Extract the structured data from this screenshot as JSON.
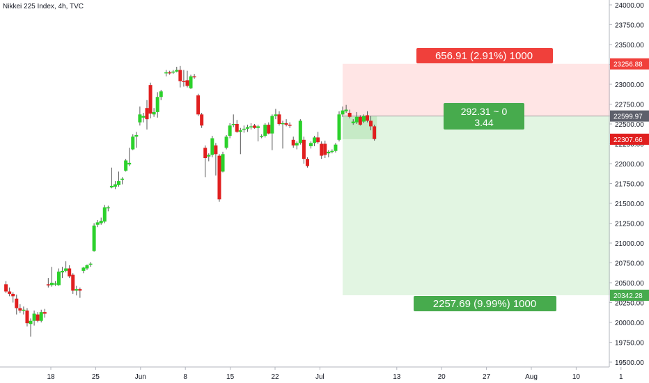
{
  "header": {
    "title": "Nikkei 225 Index, 4h, TVC"
  },
  "colors": {
    "up": "#2bd12b",
    "down": "#e01f1f",
    "wick": "#555555",
    "risk_zone": "#ffe5e5",
    "reward_zone": "#e2f5e2",
    "entry_zone": "#c6eac6",
    "risk_label": "#f0403b",
    "reward_label": "#47ab4d",
    "stop_tag": "#f0403b",
    "entry_tag": "#5d606b",
    "current_tag": "#e01f1f",
    "target_tag": "#47ab4d"
  },
  "chart_data": {
    "type": "candlestick",
    "ylim": [
      19400,
      24050
    ],
    "y_ticks": [
      "19500.00",
      "19750.00",
      "20000.00",
      "20250.00",
      "20500.00",
      "20750.00",
      "21000.00",
      "21250.00",
      "21500.00",
      "21750.00",
      "22000.00",
      "22250.00",
      "22500.00",
      "22750.00",
      "23000.00",
      "23250.00",
      "23500.00",
      "23750.00",
      "24000.00"
    ],
    "x_ticks": [
      {
        "label": "18",
        "t": 18
      },
      {
        "label": "25",
        "t": 25
      },
      {
        "label": "Jun",
        "t": 32
      },
      {
        "label": "8",
        "t": 39
      },
      {
        "label": "15",
        "t": 46
      },
      {
        "label": "22",
        "t": 53
      },
      {
        "label": "Jul",
        "t": 60
      },
      {
        "label": "13",
        "t": 72
      },
      {
        "label": "20",
        "t": 79
      },
      {
        "label": "27",
        "t": 86
      },
      {
        "label": "Aug",
        "t": 93
      },
      {
        "label": "10",
        "t": 100
      },
      {
        "label": "1",
        "t": 107
      }
    ],
    "candles": [
      {
        "t": 11.0,
        "o": 20480,
        "h": 20520,
        "l": 20370,
        "c": 20390
      },
      {
        "t": 11.55,
        "o": 20390,
        "h": 20440,
        "l": 20330,
        "c": 20360
      },
      {
        "t": 12.1,
        "o": 20360,
        "h": 20380,
        "l": 20250,
        "c": 20330
      },
      {
        "t": 12.65,
        "o": 20300,
        "h": 20350,
        "l": 20100,
        "c": 20180
      },
      {
        "t": 13.2,
        "o": 20180,
        "h": 20230,
        "l": 20120,
        "c": 20150
      },
      {
        "t": 13.75,
        "o": 20150,
        "h": 20200,
        "l": 20100,
        "c": 20160
      },
      {
        "t": 14.3,
        "o": 20150,
        "h": 20180,
        "l": 19950,
        "c": 19990
      },
      {
        "t": 14.85,
        "o": 19980,
        "h": 20050,
        "l": 19820,
        "c": 20020
      },
      {
        "t": 15.4,
        "o": 20020,
        "h": 20150,
        "l": 19960,
        "c": 20110
      },
      {
        "t": 15.95,
        "o": 20100,
        "h": 20130,
        "l": 20000,
        "c": 20020
      },
      {
        "t": 16.5,
        "o": 20020,
        "h": 20160,
        "l": 20000,
        "c": 20130
      },
      {
        "t": 17.05,
        "o": 20130,
        "h": 20170,
        "l": 20060,
        "c": 20110
      },
      {
        "t": 17.6,
        "o": 20480,
        "h": 20560,
        "l": 20440,
        "c": 20470
      },
      {
        "t": 18.15,
        "o": 20470,
        "h": 20700,
        "l": 20450,
        "c": 20500
      },
      {
        "t": 18.7,
        "o": 20480,
        "h": 20520,
        "l": 20460,
        "c": 20490
      },
      {
        "t": 19.25,
        "o": 20470,
        "h": 20680,
        "l": 20460,
        "c": 20640
      },
      {
        "t": 19.8,
        "o": 20630,
        "h": 20700,
        "l": 20560,
        "c": 20650
      },
      {
        "t": 20.35,
        "o": 20650,
        "h": 20770,
        "l": 20630,
        "c": 20680
      },
      {
        "t": 20.9,
        "o": 20680,
        "h": 20720,
        "l": 20560,
        "c": 20580
      },
      {
        "t": 21.45,
        "o": 20600,
        "h": 20620,
        "l": 20360,
        "c": 20400
      },
      {
        "t": 22.0,
        "o": 20400,
        "h": 20460,
        "l": 20340,
        "c": 20420
      },
      {
        "t": 22.55,
        "o": 20420,
        "h": 20440,
        "l": 20310,
        "c": 20400
      },
      {
        "t": 23.1,
        "o": 20650,
        "h": 20700,
        "l": 20620,
        "c": 20690
      },
      {
        "t": 23.65,
        "o": 20680,
        "h": 20730,
        "l": 20660,
        "c": 20720
      },
      {
        "t": 24.2,
        "o": 20730,
        "h": 20760,
        "l": 20700,
        "c": 20740
      },
      {
        "t": 24.75,
        "o": 20900,
        "h": 21250,
        "l": 20890,
        "c": 21220
      },
      {
        "t": 25.3,
        "o": 21230,
        "h": 21290,
        "l": 21200,
        "c": 21260
      },
      {
        "t": 25.85,
        "o": 21250,
        "h": 21320,
        "l": 21230,
        "c": 21280
      },
      {
        "t": 26.4,
        "o": 21270,
        "h": 21480,
        "l": 21250,
        "c": 21450
      },
      {
        "t": 26.95,
        "o": 21440,
        "h": 21470,
        "l": 21400,
        "c": 21450
      },
      {
        "t": 27.5,
        "o": 21700,
        "h": 21950,
        "l": 21690,
        "c": 21720
      },
      {
        "t": 28.05,
        "o": 21710,
        "h": 21780,
        "l": 21680,
        "c": 21740
      },
      {
        "t": 28.6,
        "o": 21730,
        "h": 21900,
        "l": 21710,
        "c": 21780
      },
      {
        "t": 29.15,
        "o": 21800,
        "h": 21830,
        "l": 21740,
        "c": 21810
      },
      {
        "t": 29.7,
        "o": 21910,
        "h": 22060,
        "l": 21900,
        "c": 22040
      },
      {
        "t": 30.25,
        "o": 21990,
        "h": 22200,
        "l": 21970,
        "c": 22010
      },
      {
        "t": 30.8,
        "o": 22180,
        "h": 22370,
        "l": 22170,
        "c": 22340
      },
      {
        "t": 31.35,
        "o": 22340,
        "h": 22400,
        "l": 22200,
        "c": 22360
      },
      {
        "t": 31.9,
        "o": 22520,
        "h": 22720,
        "l": 22480,
        "c": 22620
      },
      {
        "t": 32.45,
        "o": 22580,
        "h": 22640,
        "l": 22520,
        "c": 22600
      },
      {
        "t": 33.0,
        "o": 22700,
        "h": 22800,
        "l": 22430,
        "c": 22560
      },
      {
        "t": 33.55,
        "o": 22990,
        "h": 23020,
        "l": 22570,
        "c": 22630
      },
      {
        "t": 34.1,
        "o": 22620,
        "h": 22700,
        "l": 22590,
        "c": 22650
      },
      {
        "t": 34.65,
        "o": 22650,
        "h": 22900,
        "l": 22580,
        "c": 22840
      },
      {
        "t": 35.2,
        "o": 22840,
        "h": 22930,
        "l": 22800,
        "c": 22910
      },
      {
        "t": 36.0,
        "o": 23140,
        "h": 23180,
        "l": 23100,
        "c": 23150
      },
      {
        "t": 36.55,
        "o": 23150,
        "h": 23170,
        "l": 23120,
        "c": 23140
      },
      {
        "t": 37.1,
        "o": 23150,
        "h": 23180,
        "l": 23130,
        "c": 23160
      },
      {
        "t": 37.65,
        "o": 23160,
        "h": 23220,
        "l": 23150,
        "c": 23180
      },
      {
        "t": 38.2,
        "o": 23180,
        "h": 23230,
        "l": 22960,
        "c": 23040
      },
      {
        "t": 38.75,
        "o": 23040,
        "h": 23180,
        "l": 22970,
        "c": 23030
      },
      {
        "t": 39.3,
        "o": 23050,
        "h": 23170,
        "l": 22960,
        "c": 22980
      },
      {
        "t": 39.85,
        "o": 22950,
        "h": 23120,
        "l": 22940,
        "c": 23100
      },
      {
        "t": 40.4,
        "o": 23100,
        "h": 23130,
        "l": 23070,
        "c": 23090
      },
      {
        "t": 41.0,
        "o": 22860,
        "h": 22880,
        "l": 22600,
        "c": 22620
      },
      {
        "t": 41.55,
        "o": 22620,
        "h": 22640,
        "l": 22450,
        "c": 22480
      },
      {
        "t": 42.1,
        "o": 22200,
        "h": 22230,
        "l": 21830,
        "c": 22070
      },
      {
        "t": 42.65,
        "o": 22090,
        "h": 22130,
        "l": 22030,
        "c": 22110
      },
      {
        "t": 43.2,
        "o": 22110,
        "h": 22350,
        "l": 22080,
        "c": 22320
      },
      {
        "t": 43.75,
        "o": 22230,
        "h": 22260,
        "l": 21850,
        "c": 22120
      },
      {
        "t": 44.3,
        "o": 22100,
        "h": 22120,
        "l": 21520,
        "c": 21550
      },
      {
        "t": 44.85,
        "o": 21900,
        "h": 22150,
        "l": 21890,
        "c": 22120
      },
      {
        "t": 45.4,
        "o": 22200,
        "h": 22360,
        "l": 22180,
        "c": 22340
      },
      {
        "t": 45.95,
        "o": 22350,
        "h": 22510,
        "l": 22320,
        "c": 22480
      },
      {
        "t": 46.5,
        "o": 22490,
        "h": 22620,
        "l": 22460,
        "c": 22500
      },
      {
        "t": 47.05,
        "o": 22500,
        "h": 22550,
        "l": 22390,
        "c": 22400
      },
      {
        "t": 47.6,
        "o": 22400,
        "h": 22450,
        "l": 22120,
        "c": 22420
      },
      {
        "t": 48.15,
        "o": 22430,
        "h": 22480,
        "l": 22390,
        "c": 22440
      },
      {
        "t": 48.7,
        "o": 22440,
        "h": 22490,
        "l": 22400,
        "c": 22460
      },
      {
        "t": 49.25,
        "o": 22460,
        "h": 22510,
        "l": 22430,
        "c": 22470
      },
      {
        "t": 49.8,
        "o": 22480,
        "h": 22500,
        "l": 22440,
        "c": 22450
      },
      {
        "t": 50.35,
        "o": 22450,
        "h": 22490,
        "l": 22280,
        "c": 22470
      },
      {
        "t": 50.9,
        "o": 22340,
        "h": 22370,
        "l": 22320,
        "c": 22350
      },
      {
        "t": 51.45,
        "o": 22350,
        "h": 22510,
        "l": 22330,
        "c": 22490
      },
      {
        "t": 52.0,
        "o": 22490,
        "h": 22520,
        "l": 22370,
        "c": 22380
      },
      {
        "t": 52.55,
        "o": 22380,
        "h": 22620,
        "l": 22170,
        "c": 22600
      },
      {
        "t": 53.1,
        "o": 22600,
        "h": 22690,
        "l": 22560,
        "c": 22620
      },
      {
        "t": 53.65,
        "o": 22620,
        "h": 22660,
        "l": 22480,
        "c": 22500
      },
      {
        "t": 54.2,
        "o": 22500,
        "h": 22540,
        "l": 22190,
        "c": 22510
      },
      {
        "t": 54.75,
        "o": 22510,
        "h": 22560,
        "l": 22470,
        "c": 22490
      },
      {
        "t": 55.3,
        "o": 22490,
        "h": 22520,
        "l": 22450,
        "c": 22480
      },
      {
        "t": 55.85,
        "o": 22300,
        "h": 22340,
        "l": 22200,
        "c": 22230
      },
      {
        "t": 56.4,
        "o": 22230,
        "h": 22280,
        "l": 22180,
        "c": 22260
      },
      {
        "t": 56.95,
        "o": 22260,
        "h": 22560,
        "l": 22240,
        "c": 22540
      },
      {
        "t": 57.5,
        "o": 22300,
        "h": 22340,
        "l": 22000,
        "c": 22060
      },
      {
        "t": 58.05,
        "o": 22060,
        "h": 22080,
        "l": 21950,
        "c": 21970
      },
      {
        "t": 58.6,
        "o": 22220,
        "h": 22280,
        "l": 22190,
        "c": 22260
      },
      {
        "t": 59.15,
        "o": 22260,
        "h": 22350,
        "l": 22220,
        "c": 22330
      },
      {
        "t": 59.7,
        "o": 22330,
        "h": 22400,
        "l": 22250,
        "c": 22270
      },
      {
        "t": 60.25,
        "o": 22250,
        "h": 22280,
        "l": 22060,
        "c": 22100
      },
      {
        "t": 60.8,
        "o": 22250,
        "h": 22290,
        "l": 22070,
        "c": 22110
      },
      {
        "t": 61.35,
        "o": 22130,
        "h": 22170,
        "l": 22080,
        "c": 22150
      },
      {
        "t": 61.9,
        "o": 22150,
        "h": 22180,
        "l": 22130,
        "c": 22160
      },
      {
        "t": 62.45,
        "o": 22160,
        "h": 22260,
        "l": 22140,
        "c": 22240
      },
      {
        "t": 63.0,
        "o": 22300,
        "h": 22660,
        "l": 22280,
        "c": 22620
      },
      {
        "t": 63.55,
        "o": 22620,
        "h": 22720,
        "l": 22590,
        "c": 22670
      },
      {
        "t": 64.1,
        "o": 22660,
        "h": 22740,
        "l": 22640,
        "c": 22680
      },
      {
        "t": 64.65,
        "o": 22640,
        "h": 22680,
        "l": 22570,
        "c": 22590
      },
      {
        "t": 65.2,
        "o": 22510,
        "h": 22560,
        "l": 22490,
        "c": 22530
      },
      {
        "t": 65.75,
        "o": 22520,
        "h": 22650,
        "l": 22500,
        "c": 22590
      },
      {
        "t": 66.3,
        "o": 22590,
        "h": 22610,
        "l": 22480,
        "c": 22490
      },
      {
        "t": 66.85,
        "o": 22530,
        "h": 22620,
        "l": 22510,
        "c": 22600
      },
      {
        "t": 67.4,
        "o": 22610,
        "h": 22660,
        "l": 22520,
        "c": 22540
      },
      {
        "t": 67.95,
        "o": 22540,
        "h": 22600,
        "l": 22420,
        "c": 22470
      },
      {
        "t": 68.5,
        "o": 22470,
        "h": 22490,
        "l": 22290,
        "c": 22310
      }
    ],
    "position": {
      "t_start": 63.55,
      "t_end": 105.3,
      "stop": 23256.88,
      "entry": 22599.97,
      "current": 22307.66,
      "target": 20342.28
    },
    "labels": {
      "risk": "656.91 (2.91%) 1000",
      "reward": "2257.69 (9.99%) 1000",
      "pnl_line1": "292.31 ~ 0",
      "pnl_line2": "3.44"
    },
    "price_tags": {
      "stop": "23256.88",
      "entry": "22599.97",
      "current": "22307.66",
      "target": "20342.28"
    }
  }
}
